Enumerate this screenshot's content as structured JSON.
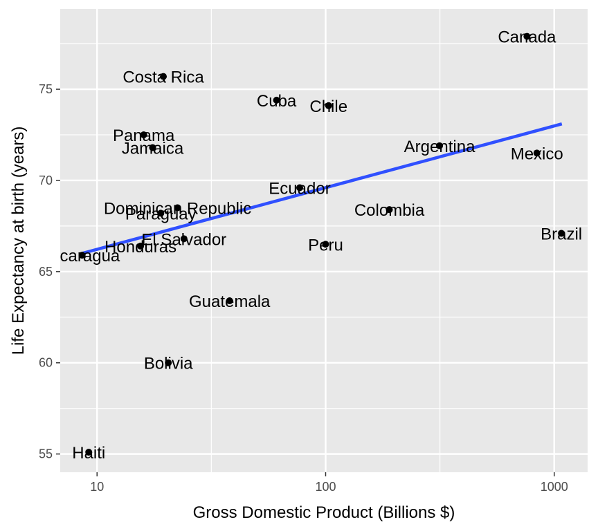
{
  "chart_data": {
    "type": "scatter",
    "xlabel": "Gross Domestic Product (Billions $)",
    "ylabel": "Life Expectancy at birth (years)",
    "x_scale": "log10",
    "xlim": [
      6.9,
      1400
    ],
    "ylim": [
      54,
      79.4
    ],
    "x_ticks": [
      10,
      100,
      1000
    ],
    "x_tick_labels": [
      "10",
      "100",
      "1000"
    ],
    "y_ticks": [
      55,
      60,
      65,
      70,
      75
    ],
    "y_tick_labels": [
      "55",
      "60",
      "65",
      "70",
      "75"
    ],
    "grid": true,
    "background_color": "#e8e8e8",
    "grid_color": "#ffffff",
    "point_color": "#000000",
    "trend_color": "#3050ff",
    "trend_line": {
      "x": [
        8.6,
        1080
      ],
      "y": [
        66.0,
        73.1
      ]
    },
    "points": [
      {
        "label": "Canada",
        "x": 760,
        "y": 77.9
      },
      {
        "label": "Costa Rica",
        "x": 19.5,
        "y": 75.7
      },
      {
        "label": "Cuba",
        "x": 61,
        "y": 74.4
      },
      {
        "label": "Chile",
        "x": 103,
        "y": 74.1
      },
      {
        "label": "Panama",
        "x": 16,
        "y": 72.5
      },
      {
        "label": "Jamaica",
        "x": 17.5,
        "y": 71.8
      },
      {
        "label": "Argentina",
        "x": 315,
        "y": 71.9
      },
      {
        "label": "Mexico",
        "x": 840,
        "y": 71.5
      },
      {
        "label": "Ecuador",
        "x": 77,
        "y": 69.6
      },
      {
        "label": "Dominican Republic",
        "x": 22.5,
        "y": 68.5
      },
      {
        "label": "Paraguay",
        "x": 19,
        "y": 68.2
      },
      {
        "label": "Colombia",
        "x": 190,
        "y": 68.4
      },
      {
        "label": "Brazil",
        "x": 1075,
        "y": 67.1
      },
      {
        "label": "El Salvador",
        "x": 24,
        "y": 66.8
      },
      {
        "label": "Honduras",
        "x": 15.5,
        "y": 66.4
      },
      {
        "label": "Peru",
        "x": 100,
        "y": 66.5
      },
      {
        "label": "Nicaragua",
        "x": 8.6,
        "y": 65.9
      },
      {
        "label": "Guatemala",
        "x": 38,
        "y": 63.4
      },
      {
        "label": "Bolivia",
        "x": 20.5,
        "y": 60.0
      },
      {
        "label": "Haiti",
        "x": 9.2,
        "y": 55.1
      }
    ]
  }
}
